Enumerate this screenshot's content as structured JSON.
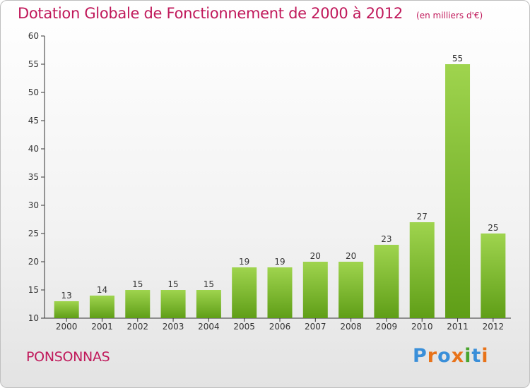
{
  "header": {
    "title": "Dotation Globale de Fonctionnement de 2000 à 2012",
    "subtitle": "(en milliers d'€)"
  },
  "footer": {
    "commune": "PONSONNAS",
    "logo_text": "Proxiti",
    "logo_colors": [
      "#3a8fd9",
      "#e8731a",
      "#3a8fd9",
      "#e8731a",
      "#4aa52e",
      "#3a8fd9",
      "#e8731a"
    ]
  },
  "colors": {
    "bar_top": "#9fd44e",
    "bar_bottom": "#5f9e17",
    "axis": "#333333",
    "text": "#333333",
    "title": "#c0185a"
  },
  "chart_data": {
    "type": "bar",
    "title": "Dotation Globale de Fonctionnement de 2000 à 2012",
    "subtitle": "(en milliers d'€)",
    "xlabel": "",
    "ylabel": "",
    "categories": [
      "2000",
      "2001",
      "2002",
      "2003",
      "2004",
      "2005",
      "2006",
      "2007",
      "2008",
      "2009",
      "2010",
      "2011",
      "2012"
    ],
    "values": [
      13,
      14,
      15,
      15,
      15,
      19,
      19,
      20,
      20,
      23,
      27,
      55,
      25
    ],
    "ylim": [
      10,
      60
    ],
    "yticks": [
      10,
      15,
      20,
      25,
      30,
      35,
      40,
      45,
      50,
      55,
      60
    ],
    "grid": false,
    "data_labels": true
  }
}
